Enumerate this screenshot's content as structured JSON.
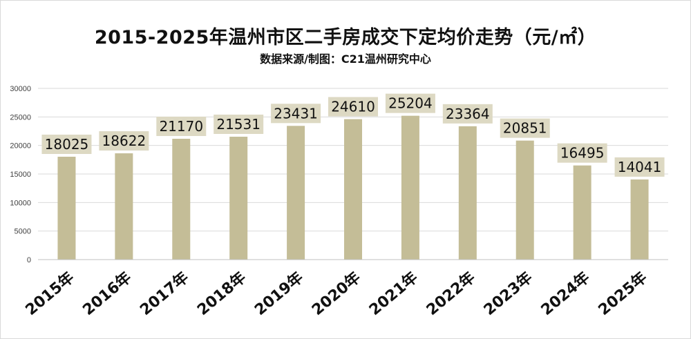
{
  "chart_data": {
    "type": "bar",
    "title": "2015-2025年温州市区二手房成交下定均价走势（元/㎡）",
    "subtitle": "数据来源/制图：C21温州研究中心",
    "categories": [
      "2015年",
      "2016年",
      "2017年",
      "2018年",
      "2019年",
      "2020年",
      "2021年",
      "2022年",
      "2023年",
      "2024年",
      "2025年"
    ],
    "values": [
      18025,
      18622,
      21170,
      21531,
      23431,
      24610,
      25204,
      23364,
      20851,
      16495,
      14041
    ],
    "ylim": [
      0,
      30000
    ],
    "yticks": [
      "0",
      "5000",
      "10000",
      "15000",
      "20000",
      "25000",
      "30000"
    ],
    "grid": true,
    "legend": "none",
    "colors": {
      "bar": "#c4bd97",
      "label_bg": "#ddd9c3",
      "grid": "#d9d9d9",
      "text": "#111111"
    }
  }
}
